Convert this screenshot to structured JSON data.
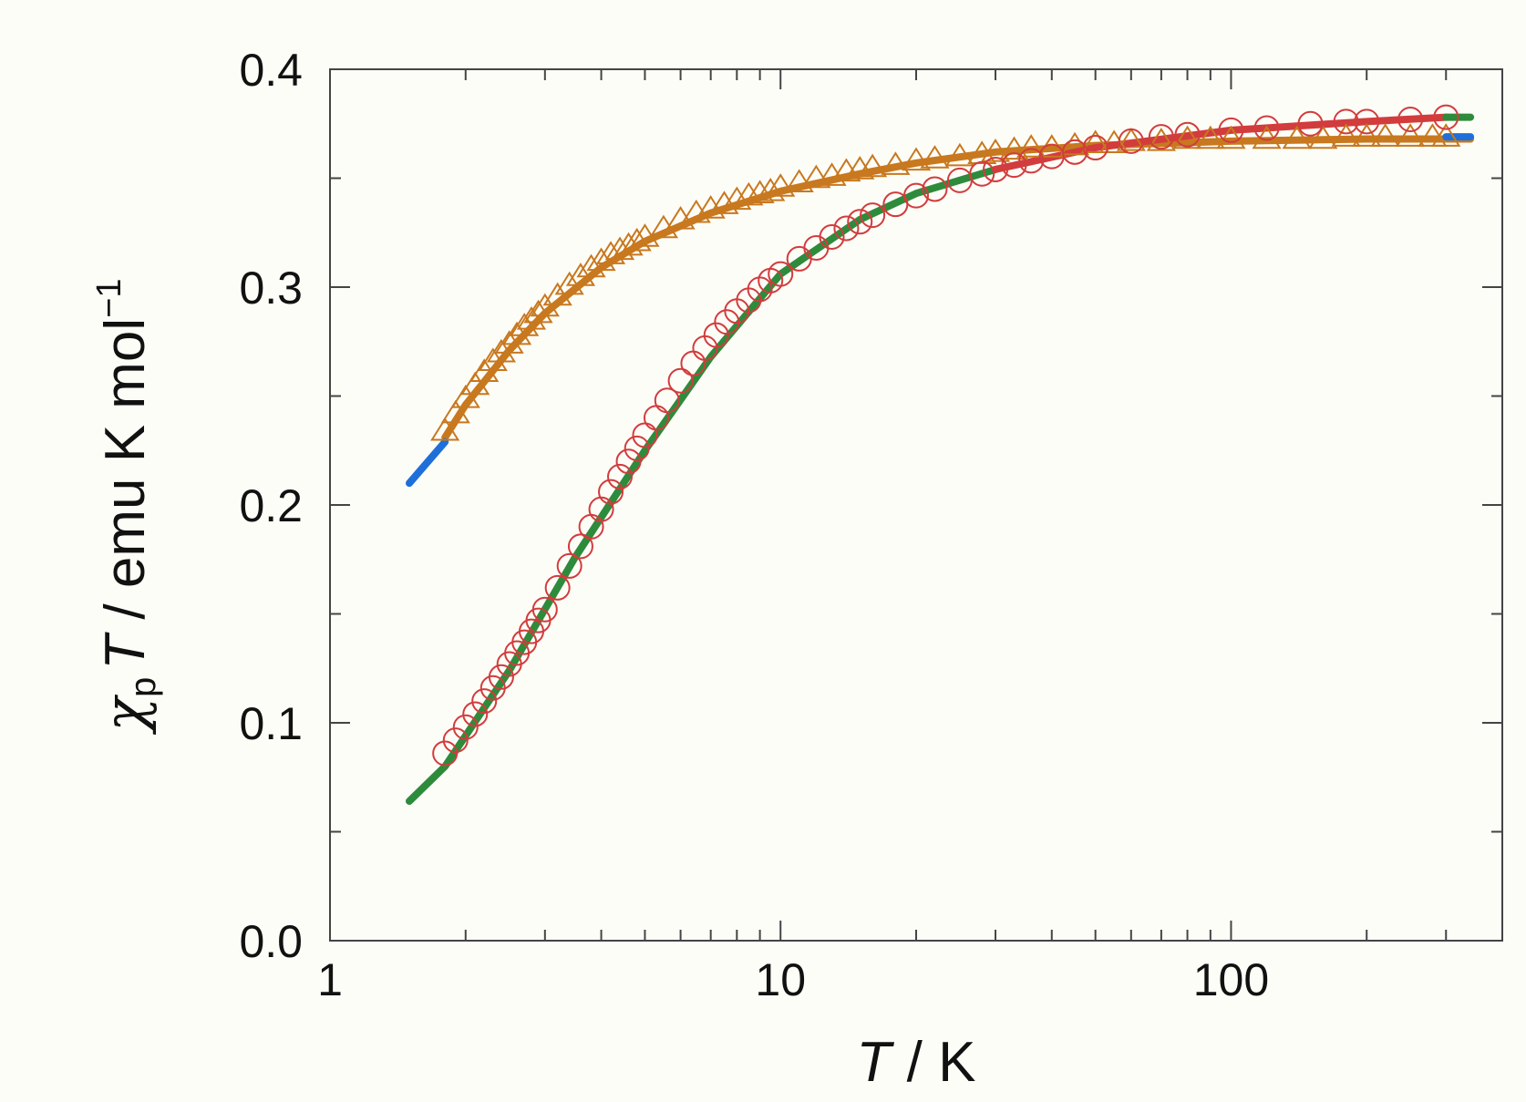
{
  "chart_data": {
    "type": "scatter",
    "title": "",
    "xscale": "log",
    "xlim": [
      1,
      400
    ],
    "ylim": [
      0.0,
      0.4
    ],
    "xticks": [
      1,
      10,
      100
    ],
    "xtick_labels": [
      "1",
      "10",
      "100"
    ],
    "yticks": [
      0.0,
      0.1,
      0.2,
      0.3,
      0.4
    ],
    "ytick_labels": [
      "0.0",
      "0.1",
      "0.2",
      "0.3",
      "0.4"
    ],
    "xlabel": {
      "symbol": "T",
      "rest": " / K"
    },
    "ylabel": {
      "chi": "χ",
      "sub": "p",
      "symbol": "T",
      "rest": " / emu K mol",
      "sup": "−1"
    },
    "grid": false,
    "legend": "none",
    "series": [
      {
        "marker": "triangle-open",
        "color": "#c8781e",
        "x": [
          1.8,
          1.9,
          2.0,
          2.1,
          2.2,
          2.3,
          2.4,
          2.5,
          2.6,
          2.7,
          2.8,
          2.9,
          3.0,
          3.2,
          3.4,
          3.6,
          3.8,
          4.0,
          4.2,
          4.4,
          4.6,
          4.8,
          5.0,
          5.5,
          6,
          6.5,
          7,
          7.5,
          8,
          8.5,
          9,
          9.5,
          10,
          11,
          12,
          13,
          14,
          15,
          16,
          18,
          20,
          22,
          25,
          28,
          30,
          33,
          36,
          40,
          45,
          50,
          55,
          60,
          70,
          80,
          90,
          100,
          120,
          140,
          160,
          180,
          200,
          220,
          250,
          280,
          300
        ],
        "y": [
          0.234,
          0.242,
          0.249,
          0.255,
          0.261,
          0.266,
          0.27,
          0.274,
          0.278,
          0.282,
          0.285,
          0.288,
          0.291,
          0.296,
          0.301,
          0.305,
          0.309,
          0.312,
          0.315,
          0.317,
          0.319,
          0.321,
          0.323,
          0.327,
          0.331,
          0.334,
          0.336,
          0.338,
          0.34,
          0.342,
          0.343,
          0.344,
          0.346,
          0.348,
          0.35,
          0.351,
          0.353,
          0.354,
          0.355,
          0.356,
          0.358,
          0.359,
          0.36,
          0.361,
          0.362,
          0.363,
          0.364,
          0.364,
          0.365,
          0.366,
          0.366,
          0.367,
          0.367,
          0.368,
          0.368,
          0.368,
          0.368,
          0.368,
          0.368,
          0.369,
          0.369,
          0.369,
          0.369,
          0.369,
          0.369
        ]
      },
      {
        "marker": "circle-open",
        "color": "#d23c3c",
        "x": [
          1.8,
          1.9,
          2.0,
          2.1,
          2.2,
          2.3,
          2.4,
          2.5,
          2.6,
          2.7,
          2.8,
          2.9,
          3.0,
          3.2,
          3.4,
          3.6,
          3.8,
          4.0,
          4.2,
          4.4,
          4.6,
          4.8,
          5.0,
          5.3,
          5.6,
          6.0,
          6.4,
          6.8,
          7.2,
          7.6,
          8.0,
          8.5,
          9.0,
          9.5,
          10,
          11,
          12,
          13,
          14,
          15,
          16,
          18,
          20,
          22,
          25,
          28,
          30,
          33,
          36,
          40,
          45,
          50,
          60,
          70,
          80,
          100,
          120,
          150,
          180,
          200,
          250,
          300
        ],
        "y": [
          0.086,
          0.092,
          0.098,
          0.104,
          0.11,
          0.116,
          0.121,
          0.127,
          0.132,
          0.137,
          0.142,
          0.147,
          0.152,
          0.162,
          0.172,
          0.181,
          0.19,
          0.198,
          0.206,
          0.213,
          0.22,
          0.226,
          0.232,
          0.24,
          0.248,
          0.257,
          0.265,
          0.272,
          0.278,
          0.284,
          0.289,
          0.294,
          0.299,
          0.303,
          0.306,
          0.313,
          0.318,
          0.323,
          0.327,
          0.33,
          0.333,
          0.338,
          0.342,
          0.345,
          0.349,
          0.352,
          0.354,
          0.356,
          0.358,
          0.36,
          0.362,
          0.364,
          0.367,
          0.369,
          0.37,
          0.372,
          0.373,
          0.375,
          0.376,
          0.376,
          0.377,
          0.378
        ]
      }
    ],
    "fits": [
      {
        "color": "#c8781e",
        "x": [
          1.8,
          2.0,
          2.5,
          3.0,
          4.0,
          5.0,
          7.0,
          10,
          15,
          20,
          30,
          50,
          100,
          200,
          340
        ],
        "y": [
          0.231,
          0.246,
          0.271,
          0.288,
          0.309,
          0.321,
          0.334,
          0.344,
          0.352,
          0.357,
          0.362,
          0.365,
          0.367,
          0.368,
          0.368
        ]
      },
      {
        "color": "#1e6fd9",
        "x": [
          1.5,
          1.8
        ],
        "y": [
          0.21,
          0.229
        ]
      },
      {
        "color": "#1e6fd9",
        "x": [
          300,
          340
        ],
        "y": [
          0.369,
          0.369
        ]
      },
      {
        "color": "#2e8b3c",
        "x": [
          1.5,
          1.8,
          2.5,
          3.5,
          5,
          7,
          10,
          15,
          20,
          30
        ],
        "y": [
          0.064,
          0.08,
          0.124,
          0.176,
          0.225,
          0.268,
          0.306,
          0.331,
          0.343,
          0.354
        ]
      },
      {
        "color": "#d23c3c",
        "x": [
          30,
          50,
          100,
          200,
          300
        ],
        "y": [
          0.354,
          0.364,
          0.372,
          0.376,
          0.378
        ]
      },
      {
        "color": "#2e8b3c",
        "x": [
          300,
          340
        ],
        "y": [
          0.378,
          0.378
        ]
      }
    ]
  }
}
